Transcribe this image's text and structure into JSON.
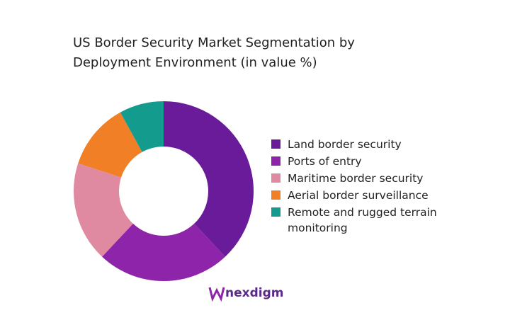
{
  "chart_data": {
    "type": "donut",
    "title": "US Border Security Market Segmentation by Deployment Environment (in value %)",
    "categories": [
      "Land border security",
      "Ports of entry",
      "Maritime border security",
      "Aerial border surveillance",
      "Remote and rugged terrain monitoring"
    ],
    "values": [
      38,
      24,
      18,
      12,
      8
    ],
    "colors": [
      "#6a1b9a",
      "#8e24aa",
      "#df8aa0",
      "#f07f26",
      "#139c8e"
    ],
    "legend": "right"
  },
  "brand": "nexdigm"
}
